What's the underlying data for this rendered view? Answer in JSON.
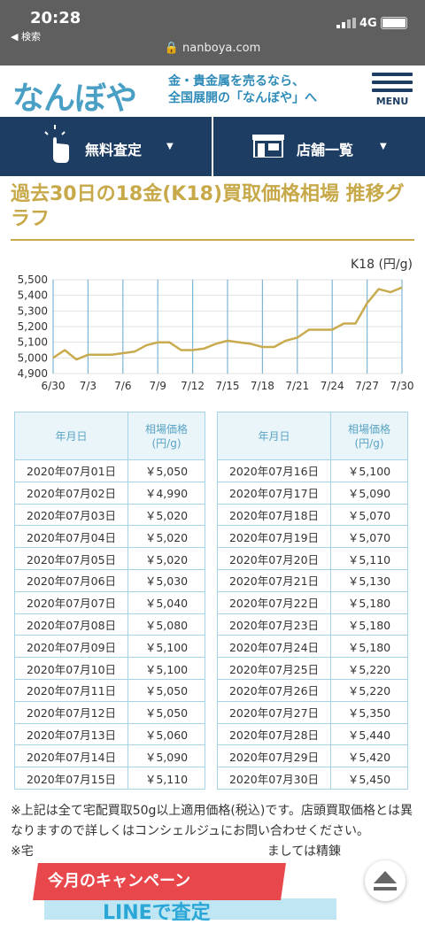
{
  "status_bar": {
    "time": "20:28",
    "back_label": "◀ 検索",
    "network": "4G",
    "url": "nanboya.com"
  },
  "header": {
    "logo_text": "なんぼや",
    "tagline_line1": "金・貴金属を売るなら、",
    "tagline_line2": "全国展開の「なんぼや」へ",
    "menu_label": "MENU"
  },
  "nav": {
    "assessment_label": "無料査定",
    "stores_label": "店舗一覧"
  },
  "page_title": "過去30日の18金(K18)買取価格相場 推移グラフ",
  "chart_data": {
    "type": "line",
    "unit_label": "K18 (円/g)",
    "x": [
      "6/30",
      "7/1",
      "7/2",
      "7/3",
      "7/4",
      "7/5",
      "7/6",
      "7/7",
      "7/8",
      "7/9",
      "7/10",
      "7/11",
      "7/12",
      "7/13",
      "7/14",
      "7/15",
      "7/16",
      "7/17",
      "7/18",
      "7/19",
      "7/20",
      "7/21",
      "7/22",
      "7/23",
      "7/24",
      "7/25",
      "7/26",
      "7/27",
      "7/28",
      "7/29",
      "7/30"
    ],
    "xtick_labels": [
      "6/30",
      "7/3",
      "7/6",
      "7/9",
      "7/12",
      "7/15",
      "7/18",
      "7/21",
      "7/24",
      "7/27",
      "7/30"
    ],
    "yticks": [
      "5,500",
      "5,400",
      "5,300",
      "5,200",
      "5,100",
      "5,000",
      "4,900"
    ],
    "ylim": [
      4900,
      5500
    ],
    "series": [
      {
        "values": [
          5000,
          5050,
          4990,
          5020,
          5020,
          5020,
          5030,
          5040,
          5080,
          5100,
          5100,
          5050,
          5050,
          5060,
          5090,
          5110,
          5100,
          5090,
          5070,
          5070,
          5110,
          5130,
          5180,
          5180,
          5180,
          5220,
          5220,
          5350,
          5440,
          5420,
          5450
        ]
      }
    ],
    "line_color": "#c9ab4f",
    "grid_color": "#7fb4d6"
  },
  "table": {
    "header_date": "年月日",
    "header_price_line1": "相場価格",
    "header_price_line2": "(円/g)",
    "left": [
      {
        "date": "2020年07月01日",
        "price": "￥5,050"
      },
      {
        "date": "2020年07月02日",
        "price": "￥4,990"
      },
      {
        "date": "2020年07月03日",
        "price": "￥5,020"
      },
      {
        "date": "2020年07月04日",
        "price": "￥5,020"
      },
      {
        "date": "2020年07月05日",
        "price": "￥5,020"
      },
      {
        "date": "2020年07月06日",
        "price": "￥5,030"
      },
      {
        "date": "2020年07月07日",
        "price": "￥5,040"
      },
      {
        "date": "2020年07月08日",
        "price": "￥5,080"
      },
      {
        "date": "2020年07月09日",
        "price": "￥5,100"
      },
      {
        "date": "2020年07月10日",
        "price": "￥5,100"
      },
      {
        "date": "2020年07月11日",
        "price": "￥5,050"
      },
      {
        "date": "2020年07月12日",
        "price": "￥5,050"
      },
      {
        "date": "2020年07月13日",
        "price": "￥5,060"
      },
      {
        "date": "2020年07月14日",
        "price": "￥5,090"
      },
      {
        "date": "2020年07月15日",
        "price": "￥5,110"
      }
    ],
    "right": [
      {
        "date": "2020年07月16日",
        "price": "￥5,100"
      },
      {
        "date": "2020年07月17日",
        "price": "￥5,090"
      },
      {
        "date": "2020年07月18日",
        "price": "￥5,070"
      },
      {
        "date": "2020年07月19日",
        "price": "￥5,070"
      },
      {
        "date": "2020年07月20日",
        "price": "￥5,110"
      },
      {
        "date": "2020年07月21日",
        "price": "￥5,130"
      },
      {
        "date": "2020年07月22日",
        "price": "￥5,180"
      },
      {
        "date": "2020年07月23日",
        "price": "￥5,180"
      },
      {
        "date": "2020年07月24日",
        "price": "￥5,180"
      },
      {
        "date": "2020年07月25日",
        "price": "￥5,220"
      },
      {
        "date": "2020年07月26日",
        "price": "￥5,220"
      },
      {
        "date": "2020年07月27日",
        "price": "￥5,350"
      },
      {
        "date": "2020年07月28日",
        "price": "￥5,440"
      },
      {
        "date": "2020年07月29日",
        "price": "￥5,420"
      },
      {
        "date": "2020年07月30日",
        "price": "￥5,450"
      }
    ]
  },
  "note": "※上記は全て宅配買取50g以上適用価格(税込)です。店頭買取価格とは異なりますので詳しくはコンシェルジュにお問い合わせください。",
  "note2": "※宅",
  "note2_tail": "ましては精錬",
  "campaign_label": "今月のキャンペーン",
  "banner_text": "LINEで査定"
}
